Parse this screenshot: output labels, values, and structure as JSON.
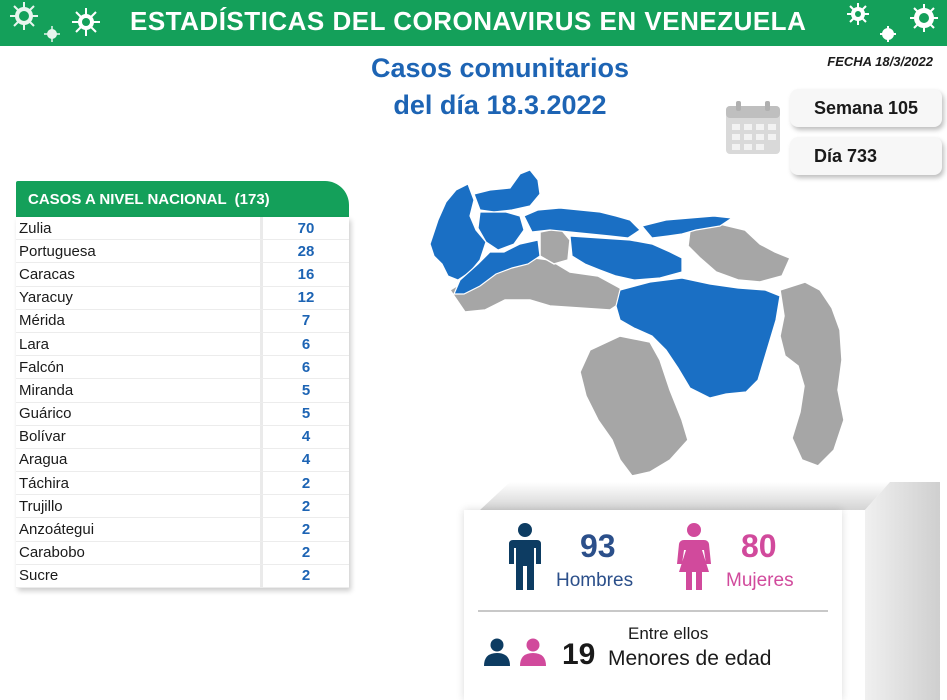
{
  "header": {
    "title": "ESTADÍSTICAS DEL CORONAVIRUS EN VENEZUELA",
    "date_label": "FECHA 18/3/2022",
    "subtitle_line1": "Casos comunitarios",
    "subtitle_line2": "del día 18.3.2022"
  },
  "calendar": {
    "icon": "calendar-icon",
    "week_label": "Semana 105",
    "day_label": "Día 733"
  },
  "table": {
    "title": "CASOS A NIVEL NACIONAL",
    "total": "(173)",
    "rows": [
      {
        "state": "Zulia",
        "value": "70"
      },
      {
        "state": "Portuguesa",
        "value": "28"
      },
      {
        "state": "Caracas",
        "value": "16"
      },
      {
        "state": "Yaracuy",
        "value": "12"
      },
      {
        "state": "Mérida",
        "value": "7"
      },
      {
        "state": "Lara",
        "value": "6"
      },
      {
        "state": "Falcón",
        "value": "6"
      },
      {
        "state": "Miranda",
        "value": "5"
      },
      {
        "state": "Guárico",
        "value": "5"
      },
      {
        "state": "Bolívar",
        "value": "4"
      },
      {
        "state": "Aragua",
        "value": "4"
      },
      {
        "state": "Táchira",
        "value": "2"
      },
      {
        "state": "Trujillo",
        "value": "2"
      },
      {
        "state": "Anzoátegui",
        "value": "2"
      },
      {
        "state": "Carabobo",
        "value": "2"
      },
      {
        "state": "Sucre",
        "value": "2"
      }
    ]
  },
  "stats": {
    "men_count": "93",
    "men_label": "Hombres",
    "women_count": "80",
    "women_label": "Mujeres",
    "minors_intro": "Entre ellos",
    "minors_count": "19",
    "minors_label": "Menores de edad"
  },
  "colors": {
    "brand_green": "#14a05a",
    "brand_blue": "#1d64b4",
    "map_affected": "#1a6fc4",
    "map_unaffected": "#a6a6a6",
    "men": "#0d3c62",
    "women": "#d14a9c"
  }
}
